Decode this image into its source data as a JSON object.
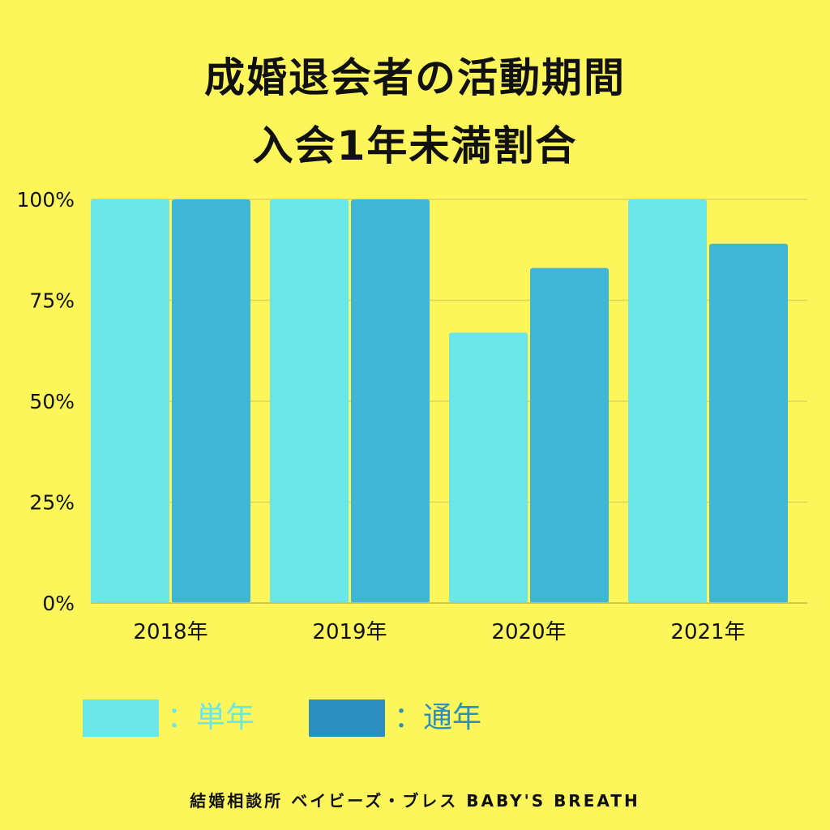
{
  "header": {
    "title_line1": "成婚退会者の活動期間",
    "title_line2": "入会1年未満割合"
  },
  "chart_data": {
    "type": "bar",
    "categories": [
      "2018年",
      "2019年",
      "2020年",
      "2021年"
    ],
    "series": [
      {
        "name": "単年",
        "values": [
          100,
          100,
          67,
          100
        ],
        "color": "#6be6e8"
      },
      {
        "name": "通年",
        "values": [
          100,
          100,
          83,
          89
        ],
        "color": "#40b6d6"
      }
    ],
    "ylim": [
      0,
      100
    ],
    "yticks": [
      "0%",
      "25%",
      "50%",
      "75%",
      "100%"
    ],
    "grid": true,
    "legend_position": "bottom-left"
  },
  "legend": {
    "items": [
      {
        "label": "：単年",
        "swatch": "#6be6e8",
        "text_color": "#6be6e8"
      },
      {
        "label": "：通年",
        "swatch": "#2d8fc0",
        "text_color": "#2d8fc0"
      }
    ]
  },
  "footer": {
    "text": "結婚相談所 ベイビーズ・ブレス BABY'S BREATH"
  }
}
